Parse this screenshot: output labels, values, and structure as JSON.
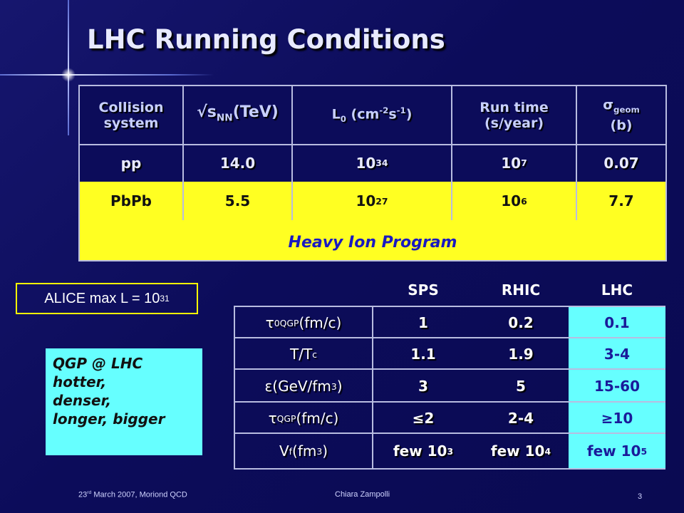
{
  "slide": {
    "title": "LHC Running Conditions",
    "page_number": "3"
  },
  "main_table": {
    "headers": {
      "collision": "Collision system",
      "sqrt": "√s",
      "sqrt_sub": "NN",
      "sqrt_tail": "(TeV)",
      "lum": "L",
      "lum_sub": "0",
      "lum_mid1": " (cm",
      "lum_sup1": "-2",
      "lum_mid2": "s",
      "lum_sup2": "-1",
      "lum_tail": ")",
      "runtime": "Run time (s/year)",
      "sigma": "σ",
      "sigma_sub": "geom",
      "sigma_tail": "(b)"
    },
    "pp": {
      "system": "pp",
      "sqrt": "14.0",
      "lum_base": "10",
      "lum_exp": "34",
      "run_base": "10",
      "run_exp": "7",
      "sigma": "0.07"
    },
    "pbpb": {
      "system": "PbPb",
      "sqrt": "5.5",
      "lum_base": "10",
      "lum_exp": "27",
      "run_base": "10",
      "run_exp": "6",
      "sigma": "7.7"
    },
    "program_label": "Heavy Ion Program"
  },
  "alice_box": {
    "text": "ALICE max L = 10",
    "exp": "31"
  },
  "qgp_box": {
    "lines": [
      "QGP @ LHC",
      "hotter,",
      "denser,",
      "longer, bigger"
    ]
  },
  "compare_table": {
    "columns": [
      "SPS",
      "RHIC",
      "LHC"
    ],
    "rows": [
      {
        "label_a": "τ",
        "label_sup": "0",
        "label_sub": "QGP",
        "label_b": " (fm/c)",
        "values": [
          "1",
          "0.2",
          "0.1"
        ]
      },
      {
        "label_a": "T/T",
        "label_sub": "c",
        "values": [
          "1.1",
          "1.9",
          "3-4"
        ]
      },
      {
        "label_a": "ε",
        "label_b": " (GeV/fm",
        "label_sup": "3",
        "label_c": ")",
        "values": [
          "3",
          "5",
          "15-60"
        ]
      },
      {
        "label_a": "τ",
        "label_sub": "QGP",
        "label_b": " (fm/c)",
        "values": [
          "≤2",
          "2-4",
          "≥10"
        ]
      },
      {
        "label_a": "V",
        "label_sub": "f",
        "label_b": "(fm",
        "label_sup": "3",
        "label_c": ")",
        "values_base": [
          "few 10",
          "few 10",
          "few 10"
        ],
        "values_exp": [
          "3",
          "4",
          "5"
        ]
      }
    ]
  },
  "footer": {
    "date_pre": "23",
    "date_sup": "rd",
    "date_post": " March 2007, Moriond QCD",
    "author": "Chiara Zampolli"
  },
  "colors": {
    "background": "#0c0c5a",
    "highlight_yellow": "#ffff22",
    "highlight_cyan": "#66ffff",
    "program_text": "#1a1ac0"
  }
}
